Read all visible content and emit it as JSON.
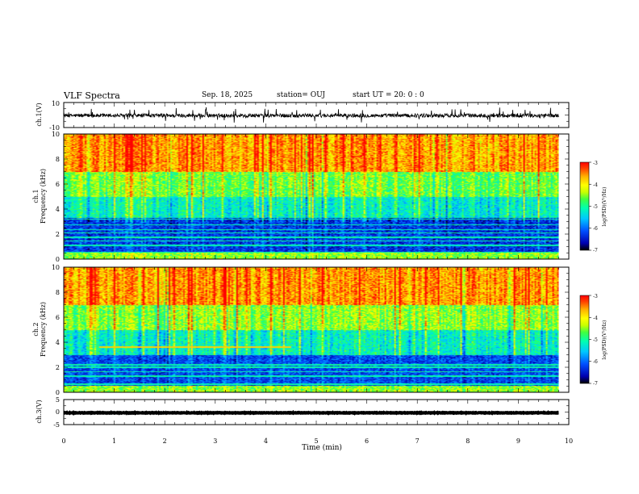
{
  "header": {
    "title": "VLF Spectra",
    "date": "Sep. 18, 2025",
    "station": "station= OUJ",
    "start": "start  UT =   20: 0  : 0"
  },
  "colors": {
    "colormap": [
      "#000000",
      "#0000b0",
      "#0050ff",
      "#00c8ff",
      "#00ffb0",
      "#40ff40",
      "#c8ff00",
      "#ffff00",
      "#ffb000",
      "#ff4000",
      "#ff0000"
    ],
    "trace": "#000000"
  },
  "chart_data": [
    {
      "type": "line",
      "ylabel": "ch.1(V)",
      "ylim": [
        -10,
        10
      ],
      "yticklabels": [
        "10",
        "-10"
      ],
      "series": [
        {
          "baseline": -0.4,
          "noise_amplitude": 1.5,
          "spike_max": 5.5
        }
      ]
    },
    {
      "type": "heatmap",
      "ylabel_line1": "ch.1",
      "ylabel_line2": "Frequency  (kHz)",
      "ylim": [
        0,
        10
      ],
      "yticklabels": [
        "0",
        "2",
        "4",
        "6",
        "8",
        "10"
      ],
      "colorbar": {
        "label": "log(PSD)(V²/Hz)",
        "range": [
          -7,
          -3
        ],
        "ticklabels": [
          "-3",
          "-4",
          "-5",
          "-6",
          "-7"
        ]
      },
      "description_levels": {
        "kHz_0_to_0.5": -4.5,
        "kHz_0.5_to_3.3": -6.3,
        "kHz_3.3_to_5": -5.2,
        "kHz_5_to_7": -4.6,
        "kHz_7_to_10": -3.6
      },
      "horizontal_lines_kHz": [
        0.55,
        1.1,
        1.45,
        1.75,
        2.1,
        2.35,
        2.75,
        3.2
      ]
    },
    {
      "type": "heatmap",
      "ylabel_line1": "ch.2",
      "ylabel_line2": "Frequency  (kHz)",
      "ylim": [
        0,
        10
      ],
      "yticklabels": [
        "0",
        "2",
        "4",
        "6",
        "8",
        "10"
      ],
      "colorbar": {
        "label": "log(PSD)(V²/Hz)",
        "range": [
          -7,
          -3
        ],
        "ticklabels": [
          "-3",
          "-4",
          "-5",
          "-6",
          "-7"
        ]
      },
      "description_levels": {
        "kHz_0_to_0.5": -4.5,
        "kHz_0.5_to_3.0": -6.2,
        "kHz_3.0_to_5": -5.2,
        "kHz_5_to_7": -4.5,
        "kHz_7_to_10": -3.6
      },
      "horizontal_lines_kHz": [
        0.65,
        1.3,
        1.65,
        2.0,
        2.2
      ],
      "tone": {
        "freq_kHz": 3.6,
        "t_start_min": 0.7,
        "t_end_min": 4.5
      }
    },
    {
      "type": "line",
      "ylabel": "ch.3(V)",
      "ylim": [
        -5,
        5
      ],
      "yticklabels": [
        "5",
        "0",
        "-5"
      ],
      "series": [
        {
          "baseline": -0.3,
          "noise_amplitude": 0.1
        }
      ]
    }
  ],
  "x_axis": {
    "xlabel": "Time  (min)",
    "xlim": [
      0,
      10
    ],
    "ticklabels": [
      "0",
      "1",
      "2",
      "3",
      "4",
      "5",
      "6",
      "7",
      "8",
      "9",
      "10"
    ],
    "data_end_min": 9.8
  }
}
